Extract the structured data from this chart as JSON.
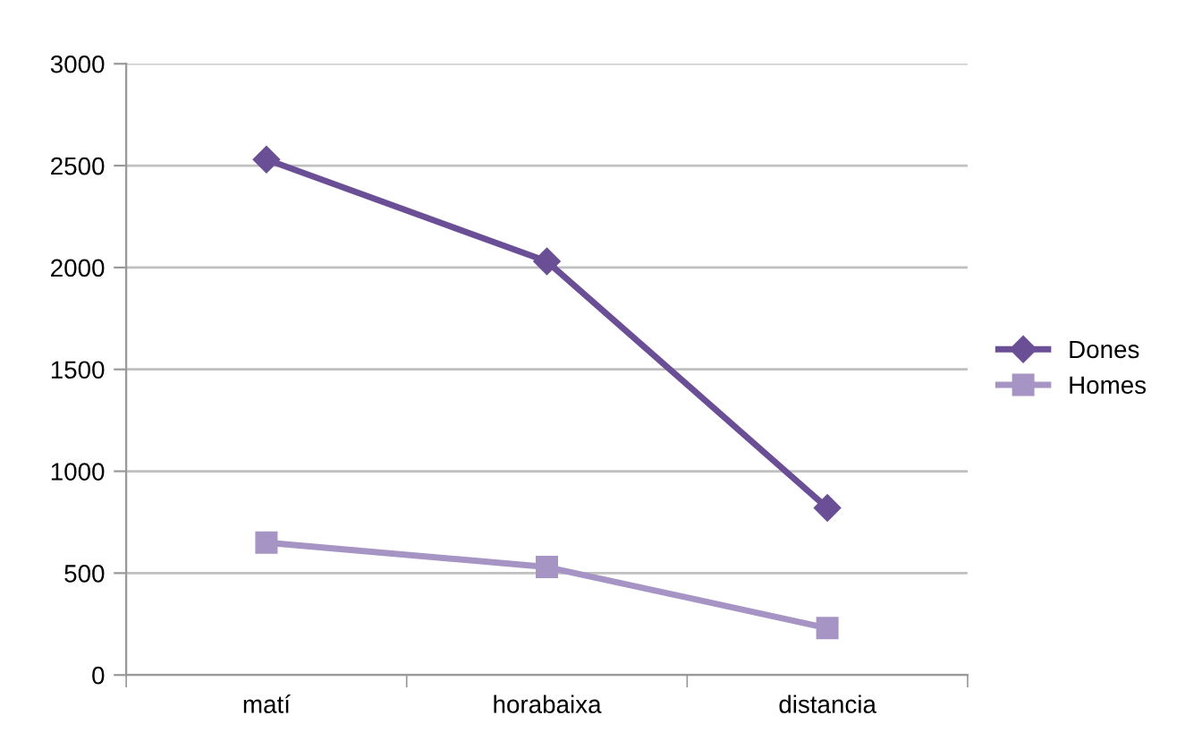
{
  "chart_data": {
    "type": "line",
    "categories": [
      "matí",
      "horabaixa",
      "distancia"
    ],
    "series": [
      {
        "name": "Dones",
        "color": "#6a4f96",
        "values": [
          2530,
          2030,
          820
        ],
        "marker": "diamond"
      },
      {
        "name": "Homes",
        "color": "#a594c4",
        "values": [
          650,
          530,
          230
        ],
        "marker": "square"
      }
    ],
    "ylim": [
      0,
      3000
    ],
    "yticks": [
      0,
      500,
      1000,
      1500,
      2000,
      2500,
      3000
    ],
    "grid": "y",
    "legend": "right",
    "line_style": "solid"
  }
}
